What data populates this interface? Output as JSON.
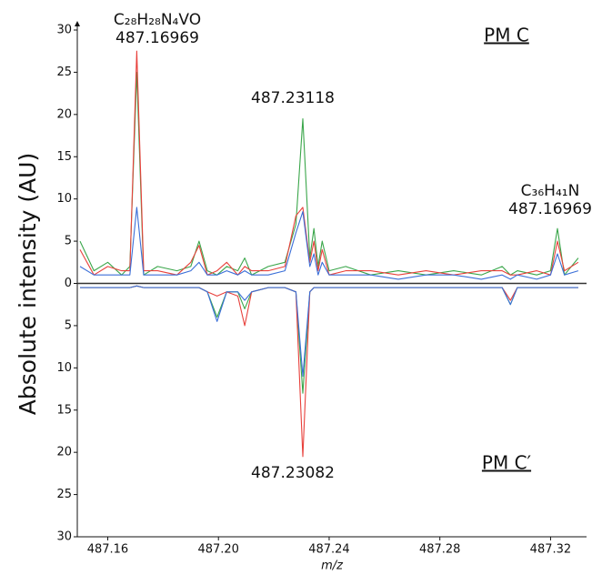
{
  "chart_data": {
    "type": "mirror-line",
    "y_label": "Absolute intensity (AU)",
    "x_label": "m/z",
    "xlim": [
      487.149,
      487.333
    ],
    "xticks": [
      487.16,
      {
        "value": 487.2,
        "label": "487.20"
      },
      487.24,
      487.28,
      487.32
    ],
    "ylim": [
      -30,
      30
    ],
    "yticks": [
      30,
      25,
      20,
      15,
      10,
      5,
      0,
      {
        "value": -5,
        "label": "5"
      },
      {
        "value": -10,
        "label": "10"
      },
      {
        "value": -15,
        "label": "15"
      },
      {
        "value": -20,
        "label": "20"
      },
      {
        "value": -25,
        "label": "25"
      },
      {
        "value": -30,
        "label": "30"
      }
    ],
    "annotations": [
      "C₂₈H₂₈N₄VO",
      "487.16969",
      "487.23118",
      "C₃₆H₄₁N",
      "487.16969",
      "487.23082",
      "PM C",
      "PM C′"
    ],
    "x": [
      487.15,
      487.155,
      487.16,
      487.165,
      487.168,
      487.1705,
      487.173,
      487.178,
      487.185,
      487.19,
      487.193,
      487.196,
      487.1995,
      487.203,
      487.207,
      487.2095,
      487.212,
      487.218,
      487.224,
      487.228,
      487.2305,
      487.233,
      487.2345,
      487.236,
      487.2375,
      487.24,
      487.246,
      487.255,
      487.265,
      487.275,
      487.285,
      487.295,
      487.3025,
      487.3055,
      487.308,
      487.315,
      487.32,
      487.3225,
      487.325,
      487.33
    ],
    "series": [
      {
        "color": "#3aa64a",
        "values": [
          5,
          1.5,
          2.5,
          1,
          2,
          25,
          1,
          2,
          1.5,
          2,
          5,
          1.5,
          1,
          2,
          1.5,
          3,
          1,
          2,
          2.5,
          7,
          19.5,
          3,
          6.5,
          2,
          5,
          1.5,
          2,
          1,
          1.5,
          1,
          1.5,
          1,
          2,
          1,
          1.5,
          1,
          1.5,
          6.5,
          1,
          3
        ]
      },
      {
        "color": "#e8413c",
        "values": [
          4,
          1,
          2,
          1.5,
          1.5,
          27.5,
          1.5,
          1.5,
          1,
          2.5,
          4.5,
          1,
          1.5,
          2.5,
          1,
          2,
          1.5,
          1.5,
          2,
          8,
          9,
          2.5,
          5,
          1.5,
          4,
          1,
          1.5,
          1.5,
          1,
          1.5,
          1,
          1.5,
          1.5,
          1,
          1,
          1.5,
          1,
          5,
          1.5,
          2.5
        ]
      },
      {
        "color": "#3b6fd8",
        "values": [
          2,
          1,
          1,
          1,
          1,
          9,
          1,
          1,
          1,
          1.5,
          2.5,
          1,
          1,
          1.5,
          1,
          1.5,
          1,
          1,
          1.5,
          6,
          8.5,
          2,
          3.5,
          1,
          2.5,
          1,
          1,
          1,
          0.5,
          1,
          1,
          0.5,
          1,
          0.5,
          1,
          0.5,
          1,
          3.5,
          1,
          1.5
        ]
      },
      {
        "color": "#3aa64a",
        "values": [
          -0.5,
          -0.5,
          -0.5,
          -0.5,
          -0.5,
          -0.3,
          -0.5,
          -0.5,
          -0.5,
          -0.5,
          -0.5,
          -1,
          -4,
          -1,
          -1,
          -3,
          -1,
          -0.5,
          -0.5,
          -1,
          -13,
          -1,
          -0.5,
          -0.5,
          -0.5,
          -0.5,
          -0.5,
          -0.5,
          -0.5,
          -0.5,
          -0.5,
          -0.5,
          -0.5,
          -2.5,
          -0.5,
          -0.5,
          -0.5,
          -0.5,
          -0.5,
          -0.5
        ]
      },
      {
        "color": "#e8413c",
        "values": [
          -0.5,
          -0.5,
          -0.5,
          -0.5,
          -0.5,
          -0.3,
          -0.5,
          -0.5,
          -0.5,
          -0.5,
          -0.5,
          -1,
          -1.5,
          -1,
          -1.5,
          -5,
          -1,
          -0.5,
          -0.5,
          -1,
          -20.5,
          -1,
          -0.5,
          -0.5,
          -0.5,
          -0.5,
          -0.5,
          -0.5,
          -0.5,
          -0.5,
          -0.5,
          -0.5,
          -0.5,
          -2,
          -0.5,
          -0.5,
          -0.5,
          -0.5,
          -0.5,
          -0.5
        ]
      },
      {
        "color": "#3b6fd8",
        "values": [
          -0.5,
          -0.5,
          -0.5,
          -0.5,
          -0.5,
          -0.3,
          -0.5,
          -0.5,
          -0.5,
          -0.5,
          -0.5,
          -1,
          -4.5,
          -1,
          -1,
          -2,
          -1,
          -0.5,
          -0.5,
          -1,
          -11,
          -1,
          -0.5,
          -0.5,
          -0.5,
          -0.5,
          -0.5,
          -0.5,
          -0.5,
          -0.5,
          -0.5,
          -0.5,
          -0.5,
          -2.5,
          -0.5,
          -0.5,
          -0.5,
          -0.5,
          -0.5,
          -0.5
        ]
      }
    ]
  }
}
